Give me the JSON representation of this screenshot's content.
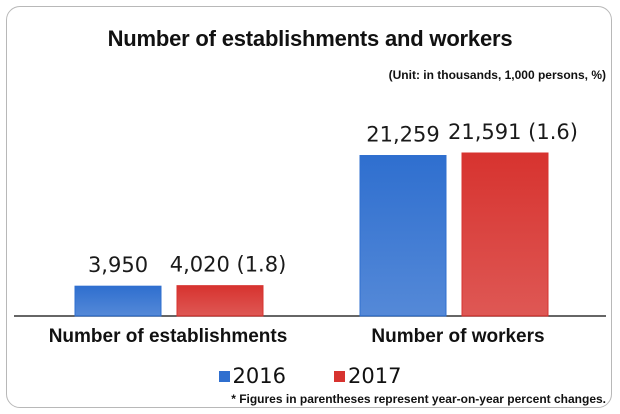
{
  "chart_data": {
    "type": "bar",
    "title": "Number of establishments and workers",
    "unit_note": "(Unit: in thousands, 1,000 persons, %)",
    "categories": [
      "Number of establishments",
      "Number of workers"
    ],
    "series": [
      {
        "name": "2016",
        "values": [
          3950,
          21259
        ],
        "labels": [
          "3,950",
          "21,259"
        ],
        "color": "#2f6fcf"
      },
      {
        "name": "2017",
        "values": [
          4020,
          21591
        ],
        "labels": [
          "4,020 (1.8)",
          "21,591 (1.6)"
        ],
        "color": "#d7332f"
      }
    ],
    "footnote": "* Figures in parentheses represent year-on-year percent changes.",
    "grid": false,
    "legend_position": "bottom"
  }
}
